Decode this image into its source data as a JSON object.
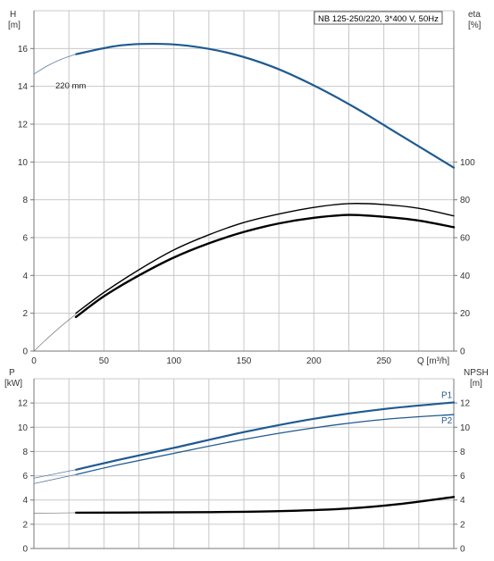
{
  "chart_data": [
    {
      "type": "line",
      "title": "NB 125-250/220, 3*400 V, 50Hz",
      "left_axis": {
        "label_line1": "H",
        "label_line2": "[m]",
        "range": [
          0,
          18
        ],
        "ticks": [
          "0",
          "2",
          "4",
          "6",
          "8",
          "10",
          "12",
          "14",
          "16"
        ]
      },
      "right_axis": {
        "label_line1": "eta",
        "label_line2": "[%]",
        "range": [
          0,
          180
        ],
        "ticks": [
          "0",
          "20",
          "40",
          "60",
          "80",
          "100"
        ]
      },
      "x_axis": {
        "label": "Q [m³/h]",
        "range": [
          0,
          300
        ],
        "ticks": [
          "0",
          "50",
          "100",
          "150",
          "200",
          "250"
        ]
      },
      "annotation": "220 mm",
      "series": [
        {
          "axis": "left",
          "color": "#1f5a91",
          "width": 2.2,
          "x": [
            30,
            60,
            85,
            110,
            140,
            170,
            200,
            230,
            260,
            300
          ],
          "y": [
            15.7,
            16.15,
            16.25,
            16.15,
            15.75,
            15.05,
            14.05,
            12.85,
            11.5,
            9.7
          ]
        },
        {
          "axis": "left",
          "color": "#5a7ea6",
          "width": 0.8,
          "x": [
            0,
            10,
            20,
            30
          ],
          "y": [
            14.65,
            15.1,
            15.45,
            15.7
          ]
        },
        {
          "axis": "right",
          "color": "#000000",
          "width": 1.4,
          "x": [
            30,
            50,
            75,
            100,
            125,
            150,
            175,
            200,
            225,
            250,
            275,
            300
          ],
          "y": [
            20,
            31,
            43,
            53.5,
            61.5,
            68,
            72.5,
            76,
            78,
            77.5,
            75.5,
            71.5
          ]
        },
        {
          "axis": "right",
          "color": "#000000",
          "width": 2.4,
          "x": [
            30,
            50,
            75,
            100,
            125,
            150,
            175,
            200,
            225,
            250,
            275,
            300
          ],
          "y": [
            18,
            29,
            40,
            49.5,
            57,
            63,
            67.5,
            70.5,
            72,
            71,
            69,
            65.5
          ]
        },
        {
          "axis": "right",
          "color": "#7a7a7a",
          "width": 0.7,
          "x": [
            0,
            10,
            20,
            30
          ],
          "y": [
            0,
            7,
            13.5,
            19.5
          ]
        }
      ]
    },
    {
      "type": "line",
      "left_axis": {
        "label_line1": "P",
        "label_line2": "[kW]",
        "range": [
          0,
          14
        ],
        "ticks": [
          "0",
          "2",
          "4",
          "6",
          "8",
          "10",
          "12"
        ]
      },
      "right_axis": {
        "label_line1": "NPSH",
        "label_line2": "[m]",
        "range": [
          0,
          14
        ],
        "ticks": [
          "0",
          "2",
          "4",
          "6",
          "8",
          "10",
          "12"
        ]
      },
      "x_axis": {
        "range": [
          0,
          300
        ]
      },
      "series": [
        {
          "name": "P1",
          "axis": "left",
          "color": "#1f5a91",
          "width": 2.2,
          "x": [
            30,
            60,
            100,
            150,
            200,
            250,
            300
          ],
          "y": [
            6.5,
            7.3,
            8.3,
            9.6,
            10.7,
            11.5,
            12.05
          ]
        },
        {
          "name": "P2",
          "axis": "left",
          "color": "#1f5a91",
          "width": 1.3,
          "x": [
            30,
            60,
            100,
            150,
            200,
            250,
            300
          ],
          "y": [
            6.1,
            6.9,
            7.85,
            9.0,
            9.95,
            10.65,
            11.05
          ]
        },
        {
          "axis": "left",
          "color": "#5a7ea6",
          "width": 0.8,
          "x": [
            0,
            30
          ],
          "y": [
            5.8,
            6.5
          ]
        },
        {
          "axis": "left",
          "color": "#5a7ea6",
          "width": 0.8,
          "x": [
            0,
            30
          ],
          "y": [
            5.35,
            6.1
          ]
        },
        {
          "axis": "right",
          "color": "#000000",
          "width": 2.4,
          "x": [
            30,
            75,
            125,
            175,
            225,
            260,
            300
          ],
          "y": [
            2.95,
            2.97,
            3.0,
            3.08,
            3.3,
            3.65,
            4.25
          ]
        },
        {
          "axis": "right",
          "color": "#7a7a7a",
          "width": 0.7,
          "x": [
            0,
            30
          ],
          "y": [
            2.9,
            2.95
          ]
        }
      ]
    }
  ]
}
